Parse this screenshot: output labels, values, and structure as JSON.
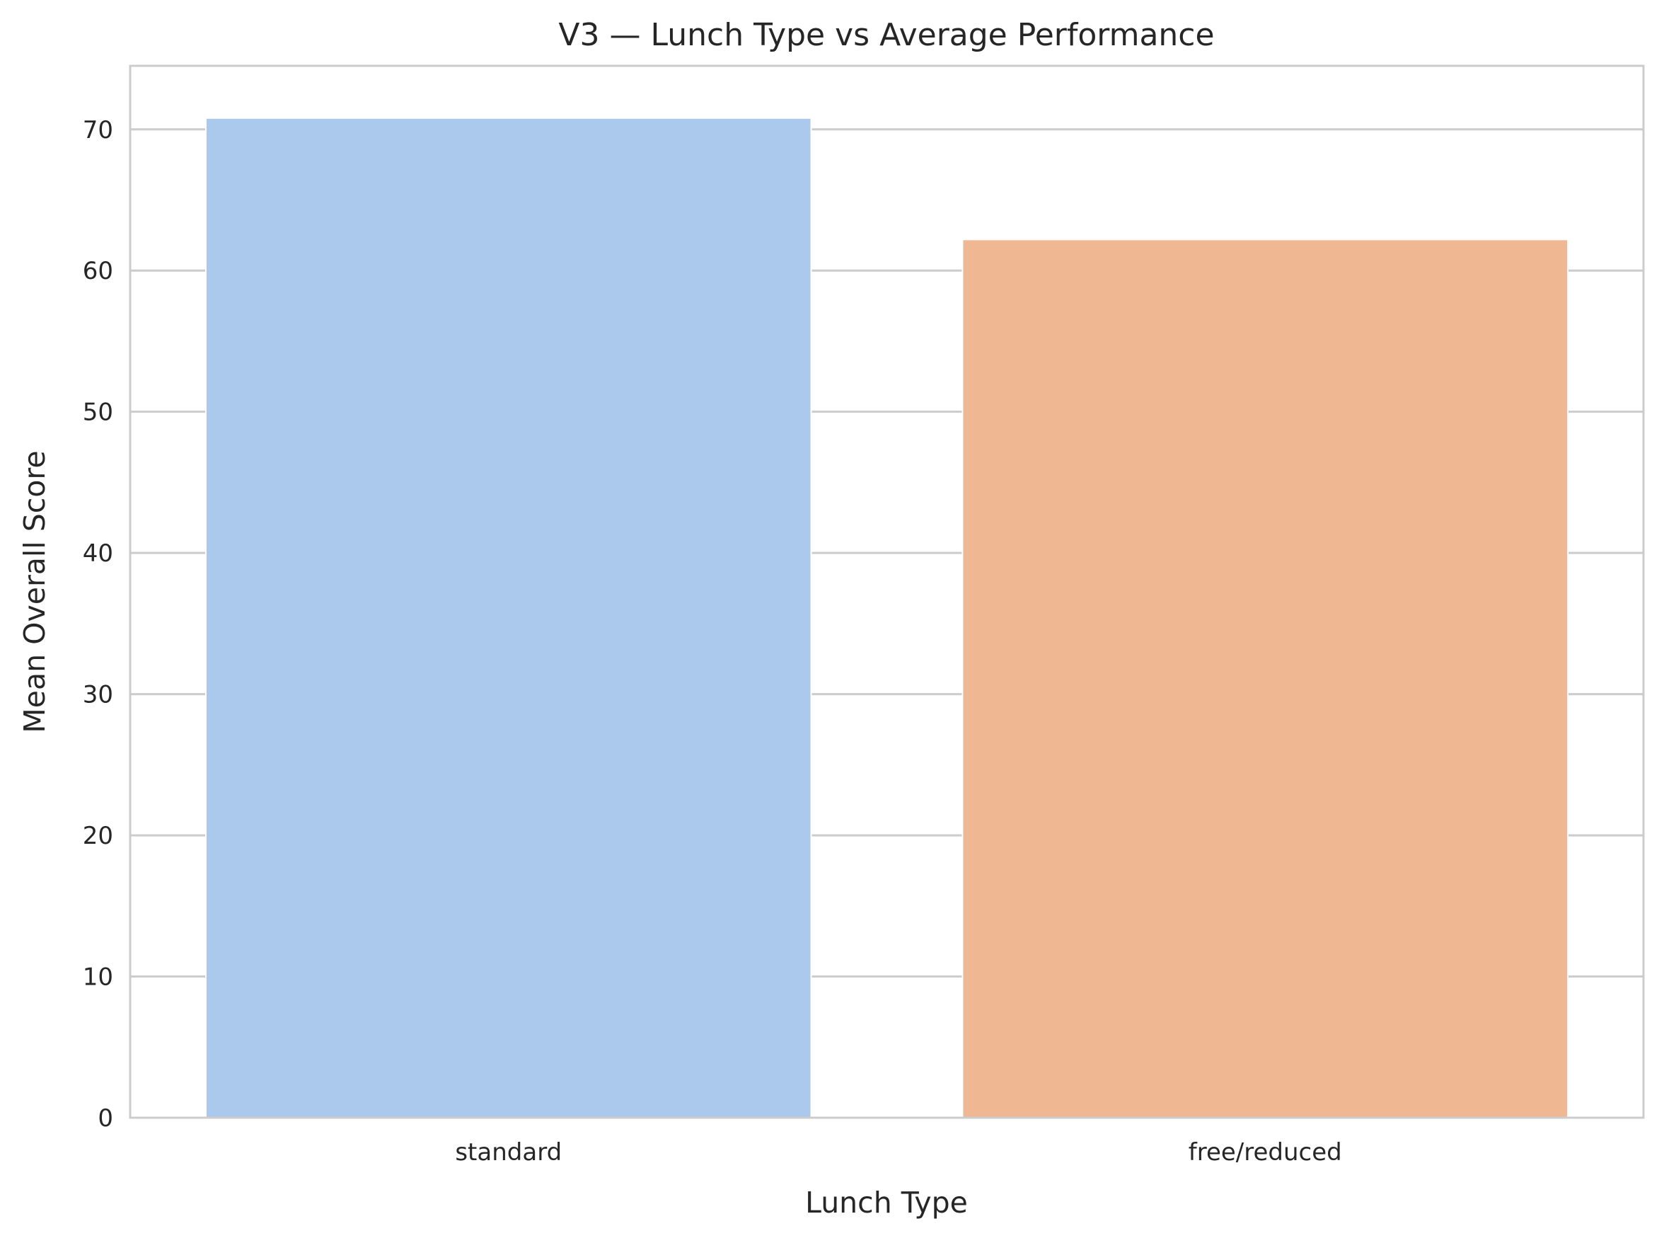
{
  "chart_data": {
    "type": "bar",
    "title": "V3 — Lunch Type vs Average Performance",
    "xlabel": "Lunch Type",
    "ylabel": "Mean Overall Score",
    "categories": [
      "standard",
      "free/reduced"
    ],
    "values": [
      70.8,
      62.2
    ],
    "colors": [
      "#abc9ec",
      "#f0b793"
    ],
    "ylim": [
      0,
      74.5
    ],
    "yticks": [
      0,
      10,
      20,
      30,
      40,
      50,
      60,
      70
    ],
    "grid": true,
    "legend": "none"
  }
}
